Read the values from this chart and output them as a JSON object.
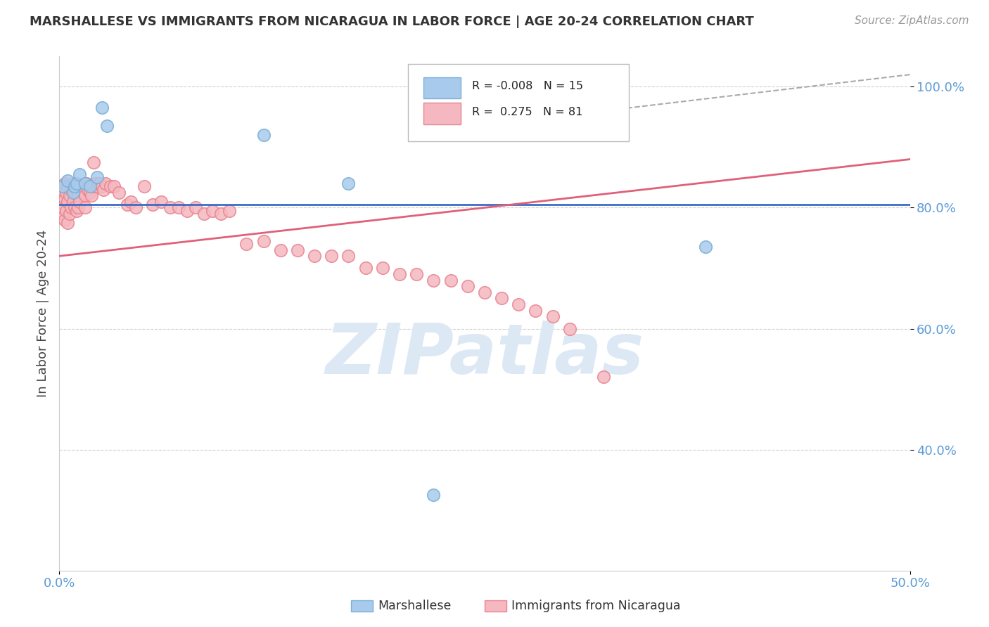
{
  "title": "MARSHALLESE VS IMMIGRANTS FROM NICARAGUA IN LABOR FORCE | AGE 20-24 CORRELATION CHART",
  "source": "Source: ZipAtlas.com",
  "ylabel": "In Labor Force | Age 20-24",
  "xlim": [
    0.0,
    0.5
  ],
  "ylim": [
    0.2,
    1.05
  ],
  "xtick_left_label": "0.0%",
  "xtick_right_label": "50.0%",
  "yticks": [
    0.4,
    0.6,
    0.8,
    1.0
  ],
  "yticklabels": [
    "40.0%",
    "60.0%",
    "80.0%",
    "100.0%"
  ],
  "blue_fill_color": "#a8caec",
  "blue_edge_color": "#7bafd4",
  "pink_fill_color": "#f5b8c0",
  "pink_edge_color": "#e8848f",
  "blue_line_color": "#3b6cc9",
  "pink_line_color": "#e0607a",
  "R_blue": -0.008,
  "N_blue": 15,
  "R_pink": 0.275,
  "N_pink": 81,
  "blue_line_y_intercept": 0.805,
  "blue_line_slope": 0.0,
  "pink_line_y_at_0": 0.72,
  "pink_line_y_at_50pct": 0.88,
  "blue_scatter_x": [
    0.002,
    0.005,
    0.008,
    0.009,
    0.01,
    0.012,
    0.015,
    0.018,
    0.022,
    0.025,
    0.028,
    0.12,
    0.17,
    0.38,
    0.22
  ],
  "blue_scatter_y": [
    0.835,
    0.845,
    0.825,
    0.835,
    0.84,
    0.855,
    0.84,
    0.835,
    0.85,
    0.965,
    0.935,
    0.92,
    0.84,
    0.735,
    0.325
  ],
  "pink_scatter_x": [
    0.001,
    0.001,
    0.002,
    0.002,
    0.003,
    0.003,
    0.003,
    0.004,
    0.004,
    0.005,
    0.005,
    0.005,
    0.006,
    0.006,
    0.007,
    0.007,
    0.008,
    0.008,
    0.009,
    0.009,
    0.01,
    0.01,
    0.011,
    0.011,
    0.012,
    0.012,
    0.013,
    0.014,
    0.015,
    0.015,
    0.016,
    0.017,
    0.018,
    0.019,
    0.02,
    0.02,
    0.021,
    0.022,
    0.023,
    0.024,
    0.025,
    0.026,
    0.027,
    0.03,
    0.032,
    0.035,
    0.04,
    0.042,
    0.045,
    0.05,
    0.055,
    0.06,
    0.065,
    0.07,
    0.075,
    0.08,
    0.085,
    0.09,
    0.095,
    0.1,
    0.11,
    0.12,
    0.13,
    0.14,
    0.15,
    0.16,
    0.17,
    0.18,
    0.19,
    0.2,
    0.21,
    0.22,
    0.23,
    0.24,
    0.25,
    0.26,
    0.27,
    0.28,
    0.29,
    0.3,
    0.32
  ],
  "pink_scatter_y": [
    0.82,
    0.79,
    0.83,
    0.8,
    0.84,
    0.815,
    0.78,
    0.825,
    0.795,
    0.835,
    0.81,
    0.775,
    0.82,
    0.79,
    0.83,
    0.8,
    0.84,
    0.81,
    0.825,
    0.8,
    0.83,
    0.795,
    0.82,
    0.8,
    0.835,
    0.81,
    0.83,
    0.825,
    0.82,
    0.8,
    0.84,
    0.83,
    0.825,
    0.82,
    0.875,
    0.835,
    0.84,
    0.835,
    0.84,
    0.84,
    0.835,
    0.83,
    0.84,
    0.835,
    0.835,
    0.825,
    0.805,
    0.81,
    0.8,
    0.835,
    0.805,
    0.81,
    0.8,
    0.8,
    0.795,
    0.8,
    0.79,
    0.795,
    0.79,
    0.795,
    0.74,
    0.745,
    0.73,
    0.73,
    0.72,
    0.72,
    0.72,
    0.7,
    0.7,
    0.69,
    0.69,
    0.68,
    0.68,
    0.67,
    0.66,
    0.65,
    0.64,
    0.63,
    0.62,
    0.6,
    0.52
  ],
  "dashed_line_x": [
    0.32,
    0.5
  ],
  "dashed_line_y": [
    0.96,
    1.02
  ],
  "watermark_text": "ZIPatlas",
  "watermark_color": "#dde8f5",
  "background_color": "#ffffff",
  "grid_color": "#d0d0d0",
  "legend_R_blue_text": "R = -0.008",
  "legend_N_blue_text": "N = 15",
  "legend_R_pink_text": "R =  0.275",
  "legend_N_pink_text": "N = 81",
  "bottom_legend_blue": "Marshallese",
  "bottom_legend_pink": "Immigrants from Nicaragua"
}
